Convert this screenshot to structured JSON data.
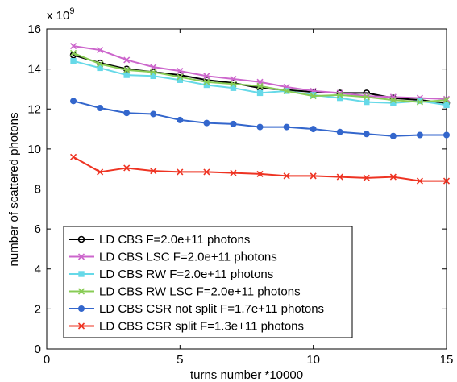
{
  "chart_data": {
    "type": "line",
    "xlabel": "turns number *10000",
    "ylabel": "number of scattered photons",
    "y_multiplier": "x 10",
    "y_multiplier_exp": "9",
    "xlim": [
      0,
      15
    ],
    "ylim": [
      0,
      16
    ],
    "xticks": [
      0,
      5,
      10,
      15
    ],
    "yticks": [
      0,
      2,
      4,
      6,
      8,
      10,
      12,
      14,
      16
    ],
    "grid": false,
    "legend_position": "bottom-left",
    "series": [
      {
        "name": "LD CBS F=2.0e+11 photons",
        "color": "#000000",
        "marker": "circle",
        "x": [
          1,
          2,
          3,
          4,
          5,
          6,
          7,
          8,
          9,
          10,
          11,
          12,
          13,
          14,
          15
        ],
        "values": [
          14.7,
          14.3,
          14.0,
          13.85,
          13.7,
          13.45,
          13.3,
          13.05,
          12.95,
          12.85,
          12.8,
          12.8,
          12.55,
          12.45,
          12.3
        ]
      },
      {
        "name": "LD CBS LSC F=2.0e+11 photons",
        "color": "#cc66cc",
        "marker": "x",
        "x": [
          1,
          2,
          3,
          4,
          5,
          6,
          7,
          8,
          9,
          10,
          11,
          12,
          13,
          14,
          15
        ],
        "values": [
          15.15,
          14.95,
          14.45,
          14.1,
          13.9,
          13.65,
          13.5,
          13.35,
          13.1,
          12.9,
          12.8,
          12.65,
          12.6,
          12.55,
          12.5
        ]
      },
      {
        "name": "LD CBS RW F=2.0e+11 photons",
        "color": "#66d9e8",
        "marker": "square",
        "x": [
          1,
          2,
          3,
          4,
          5,
          6,
          7,
          8,
          9,
          10,
          11,
          12,
          13,
          14,
          15
        ],
        "values": [
          14.4,
          14.05,
          13.7,
          13.65,
          13.45,
          13.2,
          13.05,
          12.8,
          12.9,
          12.7,
          12.55,
          12.35,
          12.3,
          12.4,
          12.2
        ]
      },
      {
        "name": "LD CBS RW LSC F=2.0e+11 photons",
        "color": "#88cc55",
        "marker": "x",
        "x": [
          1,
          2,
          3,
          4,
          5,
          6,
          7,
          8,
          9,
          10,
          11,
          12,
          13,
          14,
          15
        ],
        "values": [
          14.8,
          14.25,
          13.95,
          13.85,
          13.6,
          13.35,
          13.25,
          13.15,
          12.9,
          12.65,
          12.7,
          12.6,
          12.45,
          12.35,
          12.45
        ]
      },
      {
        "name": "LD CBS CSR not split F=1.7e+11 photons",
        "color": "#3366cc",
        "marker": "circle-filled",
        "x": [
          1,
          2,
          3,
          4,
          5,
          6,
          7,
          8,
          9,
          10,
          11,
          12,
          13,
          14,
          15
        ],
        "values": [
          12.4,
          12.05,
          11.8,
          11.75,
          11.45,
          11.3,
          11.25,
          11.1,
          11.1,
          11.0,
          10.85,
          10.75,
          10.65,
          10.7,
          10.7
        ]
      },
      {
        "name": "LD CBS CSR split F=1.3e+11 photons",
        "color": "#ee3322",
        "marker": "x",
        "x": [
          1,
          2,
          3,
          4,
          5,
          6,
          7,
          8,
          9,
          10,
          11,
          12,
          13,
          14,
          15
        ],
        "values": [
          9.6,
          8.85,
          9.05,
          8.9,
          8.85,
          8.85,
          8.8,
          8.75,
          8.65,
          8.65,
          8.6,
          8.55,
          8.6,
          8.4,
          8.4
        ]
      }
    ]
  }
}
